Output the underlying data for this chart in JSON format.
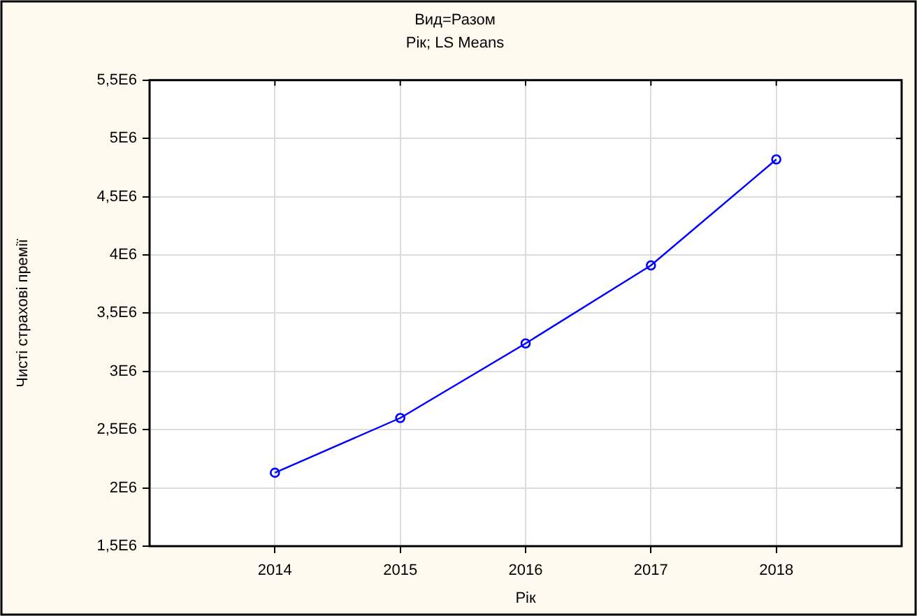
{
  "chart_data": {
    "type": "line",
    "title": "Вид=Разом",
    "subtitle": "Рік; LS Means",
    "xlabel": "Рік",
    "ylabel": "Чисті страхові премії",
    "x": [
      2014,
      2015,
      2016,
      2017,
      2018
    ],
    "series": [
      {
        "color": "#0000ff",
        "values": [
          2130000,
          2600000,
          3240000,
          3910000,
          4820000
        ]
      }
    ],
    "xlim": [
      2013,
      2019
    ],
    "xticks": [
      2014,
      2015,
      2016,
      2017,
      2018
    ],
    "ylim": [
      1500000,
      5500000
    ],
    "yticks": [
      {
        "value": 1500000,
        "label": "1,5E6"
      },
      {
        "value": 2000000,
        "label": "2E6"
      },
      {
        "value": 2500000,
        "label": "2,5E6"
      },
      {
        "value": 3000000,
        "label": "3E6"
      },
      {
        "value": 3500000,
        "label": "3,5E6"
      },
      {
        "value": 4000000,
        "label": "4E6"
      },
      {
        "value": 4500000,
        "label": "4,5E6"
      },
      {
        "value": 5000000,
        "label": "5E6"
      },
      {
        "value": 5500000,
        "label": "5,5E6"
      }
    ],
    "grid": true,
    "marker": "circle",
    "line_style": "solid"
  }
}
